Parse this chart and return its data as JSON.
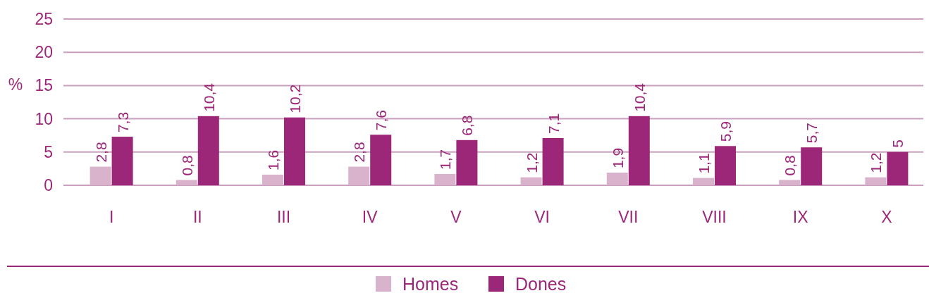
{
  "chart_data": {
    "type": "bar",
    "ylabel": "%",
    "categories": [
      "I",
      "II",
      "III",
      "IV",
      "V",
      "VI",
      "VII",
      "VIII",
      "IX",
      "X"
    ],
    "series": [
      {
        "name": "Homes",
        "color": "#d9b3cc",
        "values": [
          2.8,
          0.8,
          1.6,
          2.8,
          1.7,
          1.2,
          1.9,
          1.1,
          0.8,
          1.2
        ],
        "value_labels": [
          "2,8",
          "0,8",
          "1,6",
          "2,8",
          "1,7",
          "1,2",
          "1,9",
          "1,1",
          "0,8",
          "1,2"
        ]
      },
      {
        "name": "Dones",
        "color": "#9c2778",
        "values": [
          7.3,
          10.4,
          10.2,
          7.6,
          6.8,
          7.1,
          10.4,
          5.9,
          5.7,
          5
        ],
        "value_labels": [
          "7,3",
          "10,4",
          "10,2",
          "7,6",
          "6,8",
          "7,1",
          "10,4",
          "5,9",
          "5,7",
          "5"
        ]
      }
    ],
    "ylim": [
      0,
      25
    ],
    "yticks": [
      0,
      5,
      10,
      15,
      20,
      25
    ],
    "grid": "y",
    "legend": "bottom"
  }
}
